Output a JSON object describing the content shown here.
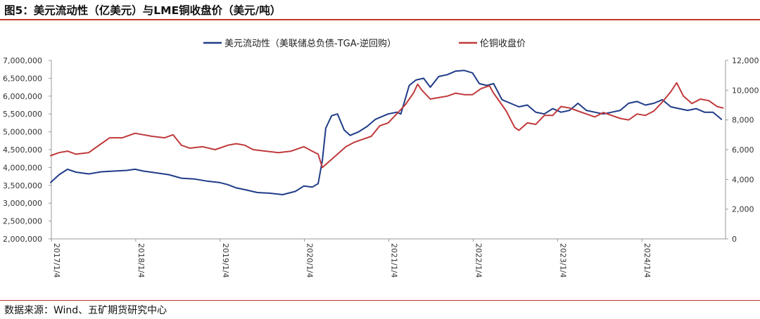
{
  "title": "图5：美元流动性（亿美元）与LME铜收盘价（美元/吨）",
  "source": "数据来源：Wind、五矿期货研究中心",
  "colors": {
    "usd_liquidity": "#1f3c88",
    "copper": "#c0393b",
    "title_rule": "#c0392b"
  },
  "chart_data": {
    "type": "line",
    "title": "图5：美元流动性（亿美元）与LME铜收盘价（美元/吨）",
    "legend_position": "top-center",
    "grid": false,
    "x_ticks": [
      "2017/1/4",
      "2018/1/4",
      "2019/1/4",
      "2020/1/4",
      "2021/1/4",
      "2022/1/4",
      "2023/1/4",
      "2024/1/4"
    ],
    "x_range": [
      "2017/1/4",
      "2024/12/31"
    ],
    "y_left": {
      "range": [
        2000000,
        7000000
      ],
      "ticks": [
        2000000,
        2500000,
        3000000,
        3500000,
        4000000,
        4500000,
        5000000,
        5500000,
        6000000,
        6500000,
        7000000
      ],
      "tick_labels": [
        "2,000,000",
        "2,500,000",
        "3,000,000",
        "3,500,000",
        "4,000,000",
        "4,500,000",
        "5,000,000",
        "5,500,000",
        "6,000,000",
        "6,500,000",
        "7,000,000"
      ]
    },
    "y_right": {
      "range": [
        0,
        12000
      ],
      "ticks": [
        0,
        2000,
        4000,
        6000,
        8000,
        10000,
        12000
      ],
      "tick_labels": [
        "0",
        "2,000",
        "4,000",
        "6,000",
        "8,000",
        "10,000",
        "12,000"
      ]
    },
    "series": [
      {
        "name": "美元流动性（美联储总负债-TGA-逆回购）",
        "axis": "left",
        "color": "#1f3c88",
        "x": [
          2017.0,
          2017.1,
          2017.2,
          2017.3,
          2017.45,
          2017.6,
          2017.75,
          2017.9,
          2018.0,
          2018.1,
          2018.25,
          2018.4,
          2018.55,
          2018.7,
          2018.85,
          2019.0,
          2019.1,
          2019.2,
          2019.3,
          2019.45,
          2019.6,
          2019.75,
          2019.9,
          2020.0,
          2020.1,
          2020.17,
          2020.22,
          2020.26,
          2020.33,
          2020.4,
          2020.48,
          2020.55,
          2020.65,
          2020.75,
          2020.85,
          2020.95,
          2021.0,
          2021.1,
          2021.15,
          2021.2,
          2021.25,
          2021.33,
          2021.42,
          2021.5,
          2021.6,
          2021.7,
          2021.8,
          2021.9,
          2022.0,
          2022.08,
          2022.17,
          2022.25,
          2022.35,
          2022.45,
          2022.55,
          2022.65,
          2022.75,
          2022.85,
          2022.95,
          2023.05,
          2023.15,
          2023.25,
          2023.35,
          2023.45,
          2023.55,
          2023.65,
          2023.75,
          2023.85,
          2023.95,
          2024.05,
          2024.15,
          2024.25,
          2024.35,
          2024.45,
          2024.55,
          2024.65,
          2024.75,
          2024.85,
          2024.95
        ],
        "values": [
          3580000,
          3800000,
          3950000,
          3870000,
          3820000,
          3880000,
          3900000,
          3920000,
          3950000,
          3900000,
          3850000,
          3800000,
          3700000,
          3680000,
          3620000,
          3580000,
          3520000,
          3430000,
          3380000,
          3300000,
          3280000,
          3240000,
          3330000,
          3480000,
          3450000,
          3550000,
          4200000,
          5100000,
          5450000,
          5500000,
          5050000,
          4900000,
          5000000,
          5150000,
          5350000,
          5450000,
          5500000,
          5550000,
          5500000,
          5900000,
          6300000,
          6450000,
          6500000,
          6250000,
          6550000,
          6600000,
          6700000,
          6720000,
          6650000,
          6350000,
          6300000,
          6350000,
          5900000,
          5800000,
          5700000,
          5750000,
          5550000,
          5500000,
          5650000,
          5550000,
          5600000,
          5800000,
          5600000,
          5550000,
          5500000,
          5550000,
          5600000,
          5800000,
          5850000,
          5750000,
          5800000,
          5900000,
          5700000,
          5650000,
          5600000,
          5650000,
          5550000,
          5550000,
          5350000
        ]
      },
      {
        "name": "伦铜收盘价",
        "axis": "right",
        "color": "#c0393b",
        "x": [
          2017.0,
          2017.1,
          2017.2,
          2017.3,
          2017.45,
          2017.6,
          2017.7,
          2017.85,
          2018.0,
          2018.1,
          2018.2,
          2018.35,
          2018.45,
          2018.55,
          2018.65,
          2018.8,
          2018.95,
          2019.1,
          2019.2,
          2019.3,
          2019.4,
          2019.55,
          2019.7,
          2019.85,
          2020.0,
          2020.1,
          2020.17,
          2020.22,
          2020.3,
          2020.4,
          2020.5,
          2020.6,
          2020.7,
          2020.8,
          2020.9,
          2021.0,
          2021.1,
          2021.2,
          2021.3,
          2021.35,
          2021.4,
          2021.5,
          2021.6,
          2021.7,
          2021.8,
          2021.9,
          2022.0,
          2022.1,
          2022.2,
          2022.25,
          2022.3,
          2022.4,
          2022.5,
          2022.55,
          2022.65,
          2022.75,
          2022.85,
          2022.95,
          2023.05,
          2023.15,
          2023.25,
          2023.35,
          2023.45,
          2023.55,
          2023.65,
          2023.75,
          2023.85,
          2023.95,
          2024.05,
          2024.15,
          2024.25,
          2024.35,
          2024.42,
          2024.5,
          2024.6,
          2024.7,
          2024.8,
          2024.9,
          2024.97
        ],
        "values": [
          5600,
          5800,
          5900,
          5700,
          5800,
          6400,
          6800,
          6800,
          7100,
          7000,
          6900,
          6800,
          7000,
          6300,
          6100,
          6200,
          6000,
          6300,
          6400,
          6300,
          6000,
          5900,
          5800,
          5900,
          6200,
          5900,
          5700,
          4800,
          5200,
          5700,
          6200,
          6500,
          6700,
          6900,
          7600,
          7800,
          8400,
          9000,
          9800,
          10400,
          10000,
          9400,
          9500,
          9600,
          9800,
          9700,
          9700,
          10100,
          10300,
          9800,
          9400,
          8600,
          7500,
          7300,
          7800,
          7700,
          8300,
          8300,
          8900,
          8800,
          8600,
          8400,
          8200,
          8500,
          8300,
          8100,
          8000,
          8400,
          8300,
          8600,
          9200,
          9900,
          10500,
          9600,
          9100,
          9400,
          9300,
          8900,
          8800
        ]
      }
    ]
  }
}
